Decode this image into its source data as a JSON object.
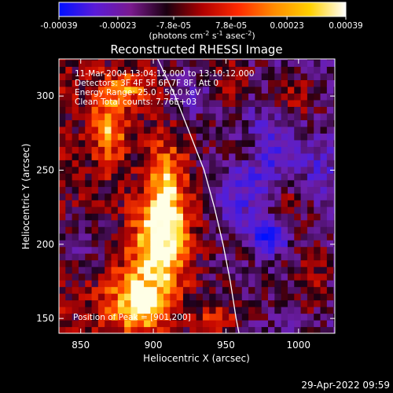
{
  "colorbar": {
    "ticks": [
      "-0.00039",
      "-0.00023",
      "-7.8e-05",
      "7.8e-05",
      "0.00023",
      "0.00039"
    ],
    "tick_values": [
      -0.00039,
      -0.00023,
      -7.8e-05,
      7.8e-05,
      0.00023,
      0.00039
    ],
    "range": [
      -0.00039,
      0.00039
    ],
    "unit_main": "(photons cm",
    "unit_sup1": "-2",
    "unit_mid": " s",
    "unit_sup2": "-1",
    "unit_end": " asec",
    "unit_sup3": "-2",
    "unit_close": ")",
    "colors": [
      "#0010ff",
      "#5a1bd8",
      "#7a1a8f",
      "#1a0010",
      "#b00000",
      "#ff2a00",
      "#ff8c00",
      "#ffd000",
      "#ffffff"
    ]
  },
  "chart_data": {
    "type": "heatmap",
    "title": "Reconstructed RHESSI Image",
    "xlabel": "Heliocentric X (arcsec)",
    "ylabel": "Heliocentric Y (arcsec)",
    "xlim": [
      835,
      1025
    ],
    "ylim": [
      140,
      325
    ],
    "xticks": [
      850,
      900,
      950,
      1000
    ],
    "yticks": [
      150,
      200,
      250,
      300
    ],
    "annotations": [
      "11-Mar-2004 13:04:12.000 to 13:10:12.000",
      "Detectors: 3F 4F 5F 6F 7F 8F, Att 0",
      "Energy Range: 25.0 - 50.0 keV",
      "Clean     Total counts: 7.76E+03"
    ],
    "peak_label": "Position of Peak = [901,200]",
    "peak": [
      901,
      200
    ],
    "limb": [
      [
        903,
        325
      ],
      [
        915,
        300
      ],
      [
        925,
        275
      ],
      [
        935,
        250
      ],
      [
        942,
        225
      ],
      [
        948,
        200
      ],
      [
        953,
        175
      ],
      [
        957,
        150
      ],
      [
        959,
        140
      ]
    ],
    "hotspots": [
      {
        "x": 905,
        "y": 200,
        "sx": 14,
        "sy": 22,
        "a": 1.0
      },
      {
        "x": 890,
        "y": 160,
        "sx": 16,
        "sy": 16,
        "a": 0.9
      },
      {
        "x": 910,
        "y": 240,
        "sx": 10,
        "sy": 25,
        "a": 0.7
      },
      {
        "x": 870,
        "y": 280,
        "sx": 9,
        "sy": 18,
        "a": 0.65
      },
      {
        "x": 885,
        "y": 305,
        "sx": 12,
        "sy": 8,
        "a": 0.55
      },
      {
        "x": 945,
        "y": 150,
        "sx": 10,
        "sy": 8,
        "a": 0.5
      },
      {
        "x": 955,
        "y": 310,
        "sx": 8,
        "sy": 9,
        "a": 0.45
      },
      {
        "x": 1000,
        "y": 300,
        "sx": 12,
        "sy": 10,
        "a": 0.4
      },
      {
        "x": 1010,
        "y": 180,
        "sx": 10,
        "sy": 20,
        "a": 0.35
      },
      {
        "x": 965,
        "y": 265,
        "sx": 8,
        "sy": 10,
        "a": 0.35
      },
      {
        "x": 995,
        "y": 230,
        "sx": 9,
        "sy": 10,
        "a": 0.3
      }
    ],
    "coldspots": [
      {
        "x": 980,
        "y": 205,
        "sx": 8,
        "sy": 7,
        "a": 0.9
      },
      {
        "x": 975,
        "y": 260,
        "sx": 14,
        "sy": 22,
        "a": 0.5
      },
      {
        "x": 955,
        "y": 230,
        "sx": 10,
        "sy": 14,
        "a": 0.4
      },
      {
        "x": 850,
        "y": 200,
        "sx": 12,
        "sy": 14,
        "a": 0.35
      },
      {
        "x": 925,
        "y": 300,
        "sx": 10,
        "sy": 10,
        "a": 0.35
      },
      {
        "x": 1015,
        "y": 250,
        "sx": 9,
        "sy": 12,
        "a": 0.3
      }
    ]
  },
  "timestamp": "29-Apr-2022 09:59"
}
